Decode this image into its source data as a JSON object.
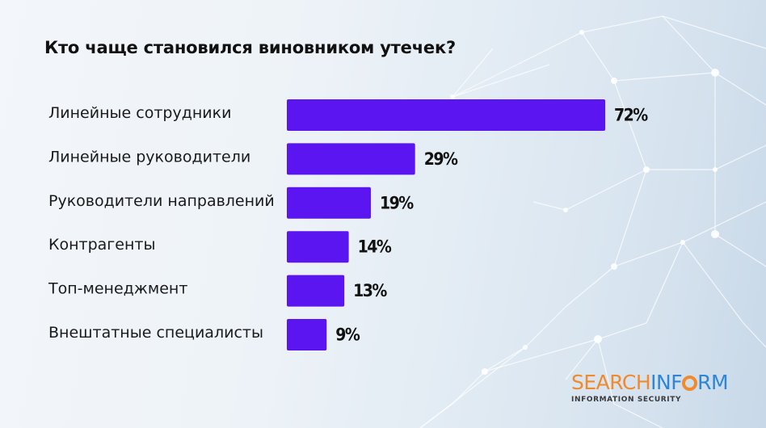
{
  "chart_data": {
    "type": "bar",
    "orientation": "horizontal",
    "title": "Кто чаще становился виновником утечек?",
    "categories": [
      "Линейные сотрудники",
      "Линейные руководители",
      "Руководители направлений",
      "Контрагенты",
      "Топ-менеджмент",
      "Внештатные специалисты"
    ],
    "values": [
      72,
      29,
      19,
      14,
      13,
      9
    ],
    "value_labels": [
      "72%",
      "29%",
      "19%",
      "14%",
      "13%",
      "9%"
    ],
    "xlim": [
      0,
      72
    ],
    "grid": false,
    "bar_color": "#5b15f0"
  },
  "logo": {
    "part1": "SEARCH",
    "part2": "INF",
    "part3": "RM",
    "subtitle": "INFORMATION SECURITY",
    "orange": "#f08a2c",
    "blue": "#2d86d8"
  }
}
